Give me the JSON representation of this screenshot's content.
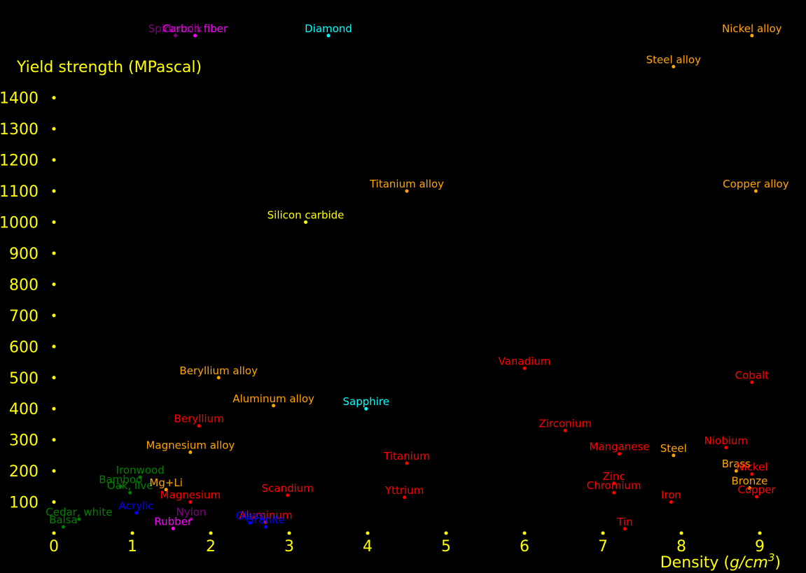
{
  "chart_data": {
    "type": "scatter",
    "title": "",
    "xlabel": "Density (g/cm³)",
    "xlabel_parts": [
      "Density (",
      "g/cm",
      "3",
      ")"
    ],
    "ylabel": "Yield strength (MPascal)",
    "xlim": [
      0,
      9.3
    ],
    "ylim": [
      0,
      1600
    ],
    "x_ticks": [
      0,
      1,
      2,
      3,
      4,
      5,
      6,
      7,
      8,
      9
    ],
    "y_ticks": [
      100,
      200,
      300,
      400,
      500,
      600,
      700,
      800,
      900,
      1000,
      1100,
      1200,
      1300,
      1400
    ],
    "grid": false,
    "legend": "none",
    "colors": {
      "background": "#000000",
      "axis": "#ffff00",
      "element": "#ff0000",
      "alloy": "#ffa500",
      "ceramic": "#ffff00",
      "gem": "#00ffff",
      "fiber": "#ff00ff",
      "organic": "#800080",
      "wood": "#008000",
      "glass": "#0000ff"
    },
    "points": [
      {
        "label": "Carbon fiber",
        "x": 1.8,
        "y": 1600,
        "color": "#ff00ff"
      },
      {
        "label": "Spider silk",
        "x": 1.55,
        "y": 1600,
        "color": "#800080"
      },
      {
        "label": "Diamond",
        "x": 3.5,
        "y": 1600,
        "color": "#00ffff"
      },
      {
        "label": "Nickel alloy",
        "x": 8.9,
        "y": 1600,
        "color": "#ffa500"
      },
      {
        "label": "Steel alloy",
        "x": 7.9,
        "y": 1500,
        "color": "#ffa500"
      },
      {
        "label": "Titanium alloy",
        "x": 4.5,
        "y": 1100,
        "color": "#ffa500"
      },
      {
        "label": "Copper alloy",
        "x": 8.95,
        "y": 1100,
        "color": "#ffa500"
      },
      {
        "label": "Silicon carbide",
        "x": 3.21,
        "y": 1000,
        "color": "#ffff00"
      },
      {
        "label": "Vanadium",
        "x": 6.0,
        "y": 530,
        "color": "#ff0000"
      },
      {
        "label": "Cobalt",
        "x": 8.9,
        "y": 485,
        "color": "#ff0000"
      },
      {
        "label": "Beryllium alloy",
        "x": 2.1,
        "y": 500,
        "color": "#ffa500"
      },
      {
        "label": "Aluminum alloy",
        "x": 2.8,
        "y": 410,
        "color": "#ffa500"
      },
      {
        "label": "Sapphire",
        "x": 3.98,
        "y": 400,
        "color": "#00ffff"
      },
      {
        "label": "Beryllium",
        "x": 1.85,
        "y": 345,
        "color": "#ff0000"
      },
      {
        "label": "Zirconium",
        "x": 6.52,
        "y": 330,
        "color": "#ff0000"
      },
      {
        "label": "Niobium",
        "x": 8.57,
        "y": 275,
        "color": "#ff0000"
      },
      {
        "label": "Manganese",
        "x": 7.21,
        "y": 255,
        "color": "#ff0000"
      },
      {
        "label": "Steel",
        "x": 7.9,
        "y": 250,
        "color": "#ffa500"
      },
      {
        "label": "Magnesium alloy",
        "x": 1.74,
        "y": 260,
        "color": "#ffa500"
      },
      {
        "label": "Titanium",
        "x": 4.5,
        "y": 225,
        "color": "#ff0000"
      },
      {
        "label": "Brass",
        "x": 8.7,
        "y": 200,
        "color": "#ffa500"
      },
      {
        "label": "Nickel",
        "x": 8.9,
        "y": 190,
        "color": "#ff0000"
      },
      {
        "label": "Ironwood",
        "x": 1.1,
        "y": 180,
        "color": "#008000"
      },
      {
        "label": "Bamboo",
        "x": 0.85,
        "y": 150,
        "color": "#008000"
      },
      {
        "label": "Oak, live",
        "x": 0.97,
        "y": 130,
        "color": "#008000"
      },
      {
        "label": "Mg+Li",
        "x": 1.43,
        "y": 140,
        "color": "#ffa500"
      },
      {
        "label": "Zinc",
        "x": 7.14,
        "y": 160,
        "color": "#ff0000"
      },
      {
        "label": "Chromium",
        "x": 7.14,
        "y": 130,
        "color": "#ff0000"
      },
      {
        "label": "Bronze",
        "x": 8.87,
        "y": 145,
        "color": "#ffa500"
      },
      {
        "label": "Copper",
        "x": 8.96,
        "y": 117,
        "color": "#ff0000"
      },
      {
        "label": "Scandium",
        "x": 2.98,
        "y": 122,
        "color": "#ff0000"
      },
      {
        "label": "Yttrium",
        "x": 4.47,
        "y": 115,
        "color": "#ff0000"
      },
      {
        "label": "Magnesium",
        "x": 1.74,
        "y": 100,
        "color": "#ff0000"
      },
      {
        "label": "Iron",
        "x": 7.87,
        "y": 100,
        "color": "#ff0000"
      },
      {
        "label": "Acrylic",
        "x": 1.05,
        "y": 65,
        "color": "#0000ff"
      },
      {
        "label": "Cedar, white",
        "x": 0.32,
        "y": 45,
        "color": "#008000"
      },
      {
        "label": "Nylon",
        "x": 1.75,
        "y": 45,
        "color": "#800080"
      },
      {
        "label": "Balsa",
        "x": 0.12,
        "y": 20,
        "color": "#008000"
      },
      {
        "label": "Rubber",
        "x": 1.52,
        "y": 15,
        "color": "#ff00ff"
      },
      {
        "label": "Aluminum",
        "x": 2.7,
        "y": 35,
        "color": "#ff0000"
      },
      {
        "label": "Glass",
        "x": 2.5,
        "y": 33,
        "color": "#0000ff"
      },
      {
        "label": "Granite",
        "x": 2.7,
        "y": 20,
        "color": "#0000ff"
      },
      {
        "label": "Tin",
        "x": 7.28,
        "y": 14,
        "color": "#ff0000"
      }
    ]
  }
}
